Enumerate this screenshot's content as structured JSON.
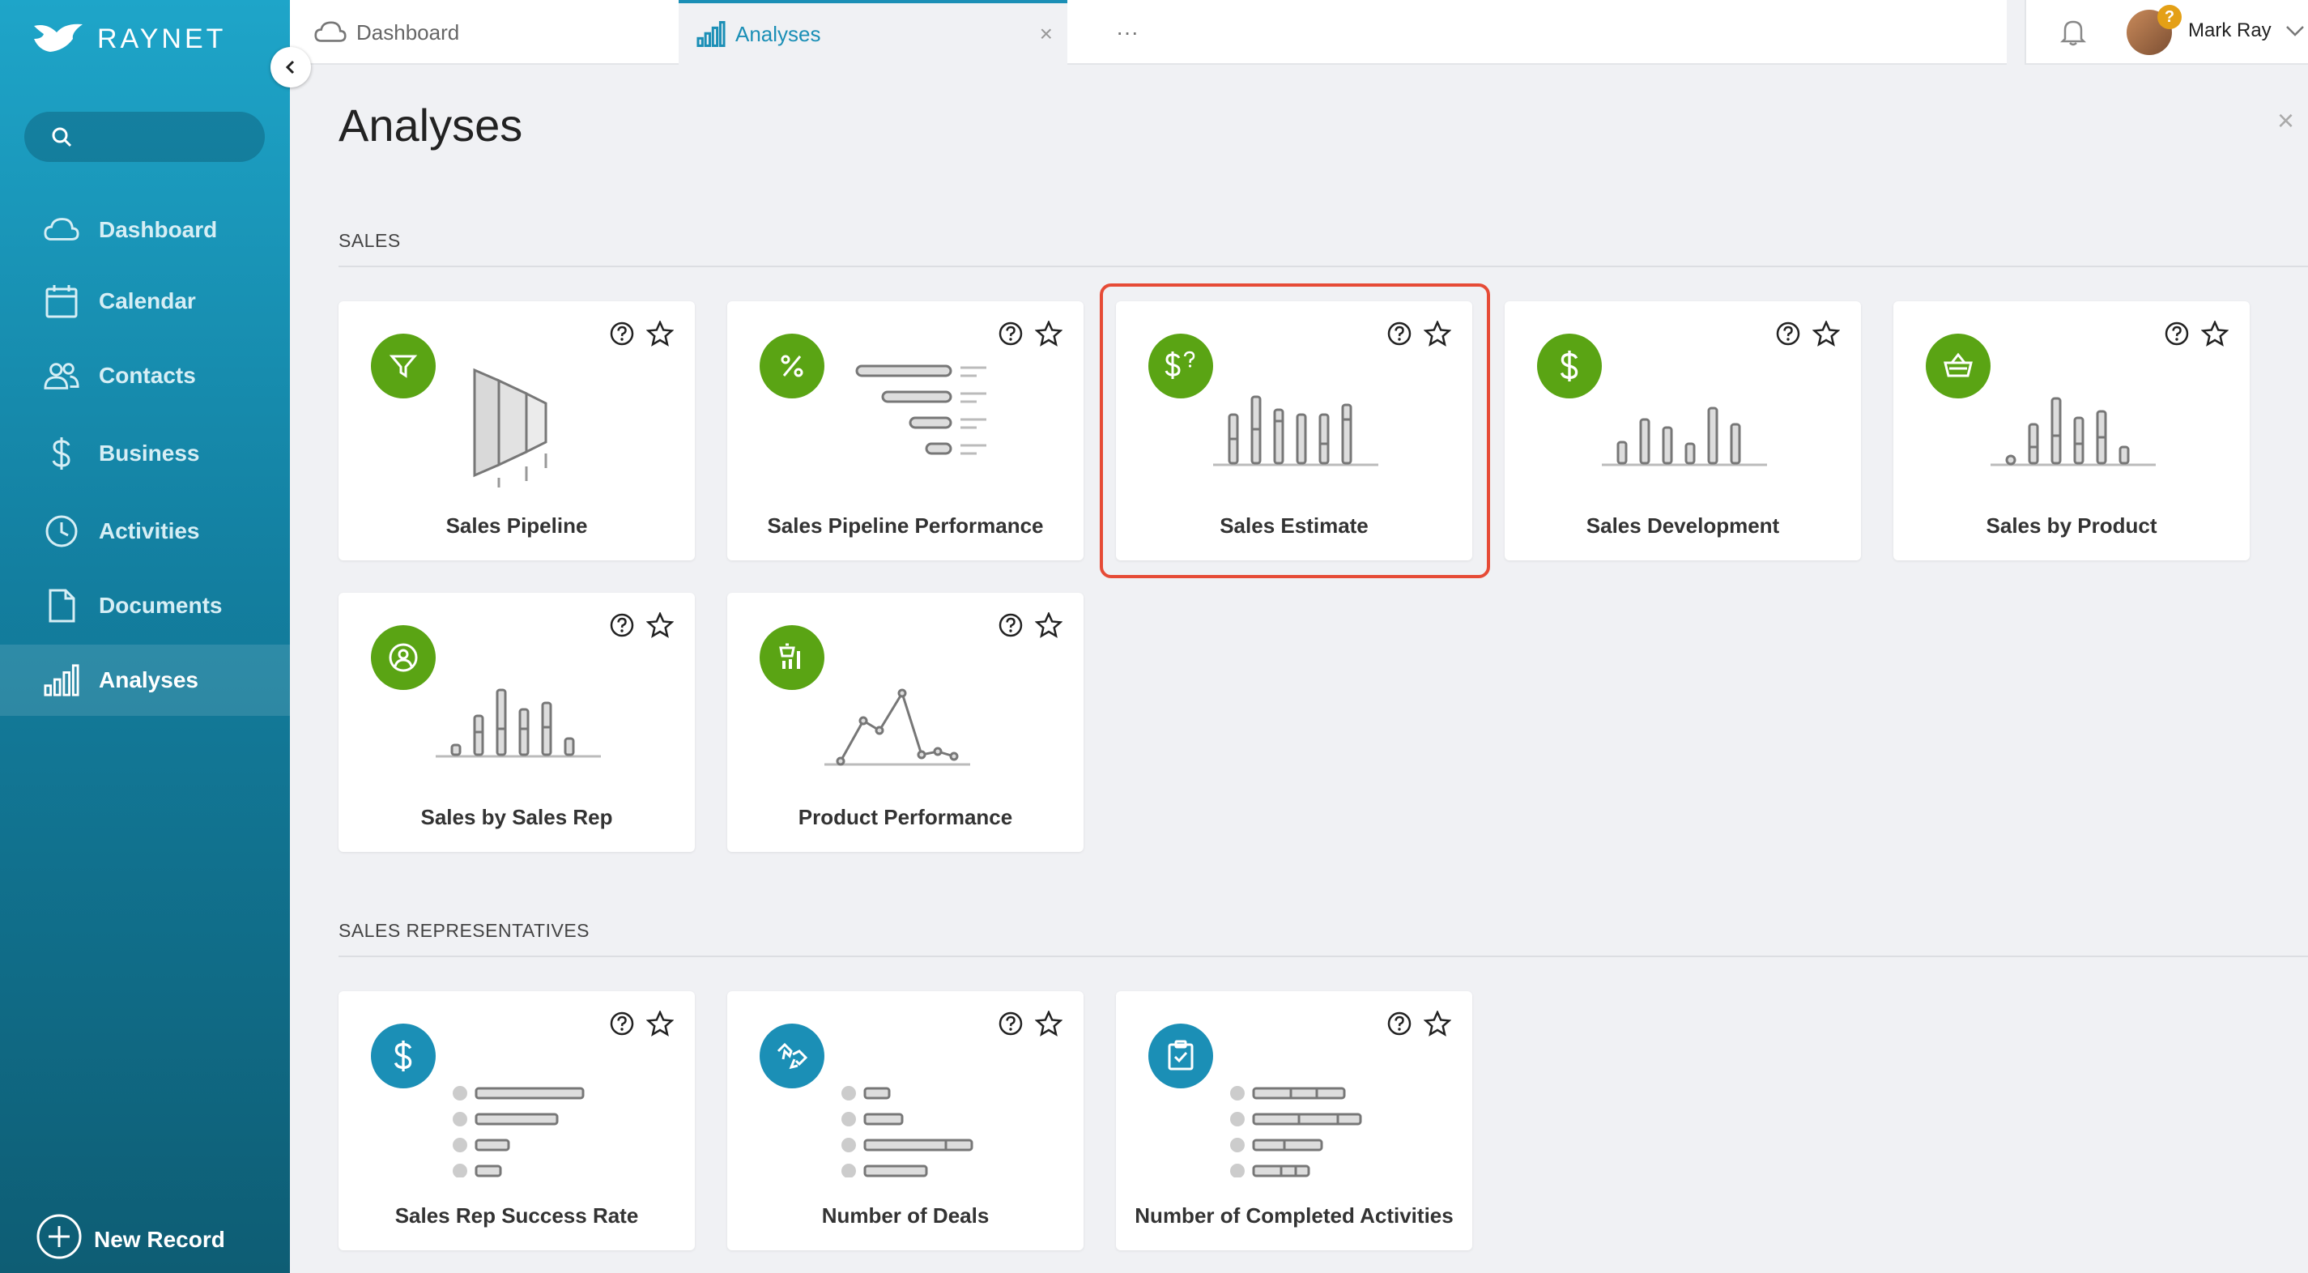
{
  "app": {
    "brand": "RAYNET",
    "accent_color": "#1b8fb6",
    "highlight_color": "#e64b36"
  },
  "sidebar": {
    "search_placeholder": "",
    "items": [
      {
        "label": "Dashboard",
        "icon": "cloud-icon"
      },
      {
        "label": "Calendar",
        "icon": "calendar-icon"
      },
      {
        "label": "Contacts",
        "icon": "people-icon"
      },
      {
        "label": "Business",
        "icon": "dollar-icon"
      },
      {
        "label": "Activities",
        "icon": "clock-icon"
      },
      {
        "label": "Documents",
        "icon": "document-icon"
      },
      {
        "label": "Analyses",
        "icon": "bar-chart-icon",
        "active": true
      }
    ],
    "new_record": "New Record"
  },
  "tabs": [
    {
      "label": "Dashboard",
      "icon": "cloud-icon"
    },
    {
      "label": "Analyses",
      "icon": "bar-chart-icon",
      "active": true,
      "close": "×"
    }
  ],
  "tabs_more": "···",
  "user": {
    "name": "Mark Ray",
    "badge": "?"
  },
  "page": {
    "title": "Analyses",
    "close": "×"
  },
  "sections": [
    {
      "title": "SALES",
      "cards": [
        {
          "label": "Sales Pipeline",
          "icon": "funnel-icon"
        },
        {
          "label": "Sales Pipeline Performance",
          "icon": "percent-icon"
        },
        {
          "label": "Sales Estimate",
          "icon": "dollar-question-icon",
          "highlighted": true
        },
        {
          "label": "Sales Development",
          "icon": "dollar-icon"
        },
        {
          "label": "Sales by Product",
          "icon": "basket-icon"
        },
        {
          "label": "Sales by Sales Rep",
          "icon": "person-circle-icon"
        },
        {
          "label": "Product Performance",
          "icon": "product-chart-icon"
        }
      ]
    },
    {
      "title": "SALES REPRESENTATIVES",
      "cards": [
        {
          "label": "Sales Rep Success Rate",
          "icon": "dollar-icon"
        },
        {
          "label": "Number of Deals",
          "icon": "handshake-icon"
        },
        {
          "label": "Number of Completed Activities",
          "icon": "clipboard-check-icon"
        }
      ]
    }
  ]
}
